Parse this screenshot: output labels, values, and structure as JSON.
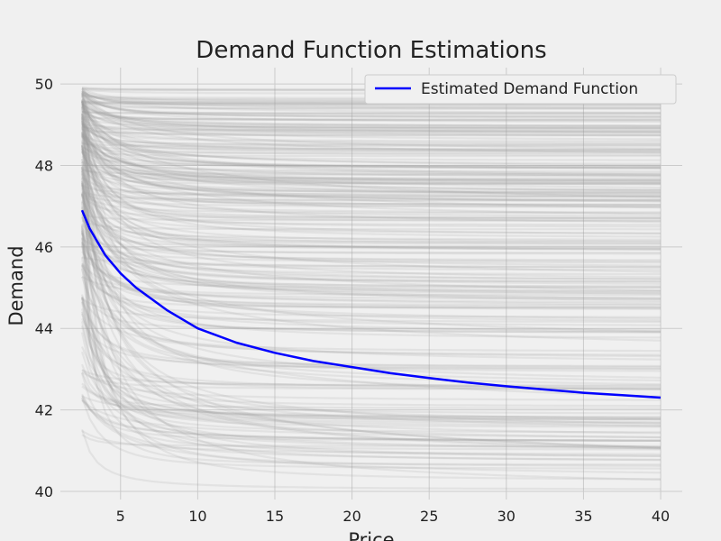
{
  "chart_data": {
    "type": "line",
    "title": "Demand Function Estimations",
    "xlabel": "Price",
    "ylabel": "Demand",
    "xlim": [
      1.1,
      41.4
    ],
    "ylim": [
      39.8,
      50.4
    ],
    "xticks": [
      5,
      10,
      15,
      20,
      25,
      30,
      35,
      40
    ],
    "yticks": [
      40,
      42,
      44,
      46,
      48,
      50
    ],
    "grid": true,
    "legend": {
      "position": "top-right",
      "entries": [
        "Estimated Demand Function"
      ]
    },
    "background_samples": {
      "color": "#999999",
      "count": 250,
      "x_range": [
        2.5,
        40
      ],
      "asymptote_range": [
        40.0,
        50.0
      ]
    },
    "series": [
      {
        "name": "Estimated Demand Function",
        "color": "#0000ff",
        "x": [
          2.5,
          3,
          4,
          5,
          6,
          8,
          10,
          12.5,
          15,
          17.5,
          20,
          22.5,
          25,
          27.5,
          30,
          32.5,
          35,
          37.5,
          40
        ],
        "y": [
          46.9,
          46.45,
          45.8,
          45.35,
          45.0,
          44.45,
          44.0,
          43.65,
          43.4,
          43.2,
          43.05,
          42.9,
          42.78,
          42.67,
          42.58,
          42.5,
          42.42,
          42.36,
          42.3
        ]
      }
    ]
  },
  "colors": {
    "background": "#f0f0f0",
    "grid": "#cbcbcb",
    "main_line": "#0000ff",
    "samples": "#999999"
  }
}
